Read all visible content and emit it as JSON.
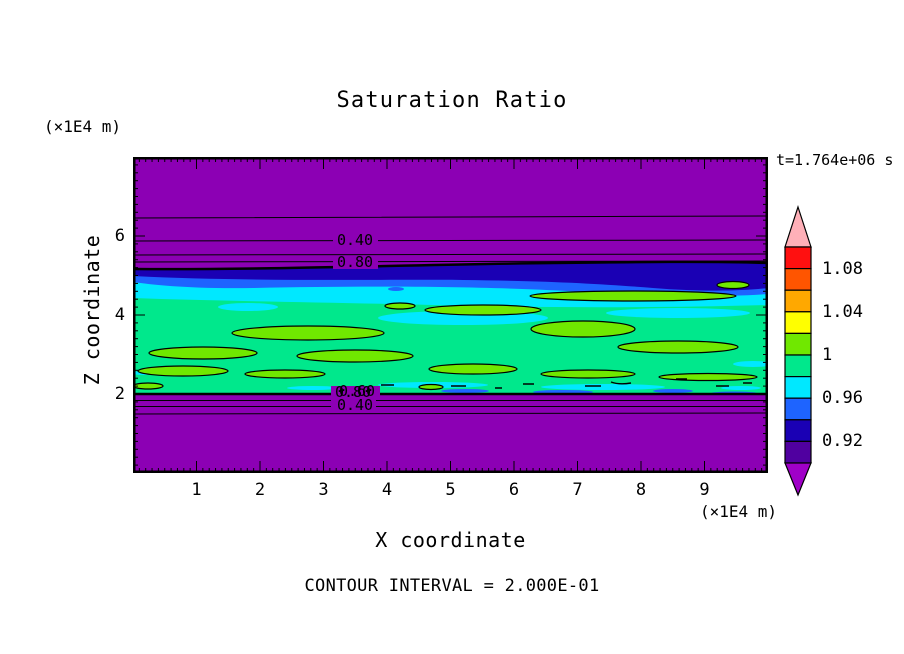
{
  "title": "Saturation Ratio",
  "timestamp": "t=1.764e+06 s",
  "footer": "CONTOUR INTERVAL = 2.000E-01",
  "axes": {
    "x": {
      "label": "X coordinate",
      "unit": "(×1E4 m)",
      "min": 0,
      "max": 10,
      "major_ticks": [
        "1",
        "2",
        "3",
        "4",
        "5",
        "6",
        "7",
        "8",
        "9"
      ],
      "minor_step": 0.1
    },
    "y": {
      "label": "Z coordinate",
      "unit": "(×1E4 m)",
      "min": 0,
      "max": 8,
      "major_ticks": [
        "2",
        "4",
        "6"
      ],
      "minor_step": 0.2
    }
  },
  "plot": {
    "contour_labels": {
      "top_040": "0.40",
      "top_080": "0.80",
      "bot_080": "0.80",
      "bot_060": "0.60",
      "bot_040": "0.40"
    }
  },
  "colorbar": {
    "labels": [
      "1.08",
      "1.04",
      "1",
      "0.96",
      "0.92"
    ],
    "segment_colors": [
      "#FF1010",
      "#FF5500",
      "#FFA800",
      "#FFFF00",
      "#70E800",
      "#00E88C",
      "#00E8FF",
      "#1E64FF",
      "#1A00B4",
      "#5000A0"
    ],
    "top_arrow_color": "#FFB0B8",
    "bottom_arrow_color": "#A000C8"
  },
  "colors": {
    "background": "#FFFFFF",
    "unsaturated_purple": "#8C00B4",
    "field_spring_green": "#00E88C",
    "lens_green": "#70E800",
    "cyan": "#00E8FF",
    "blue": "#1E64FF",
    "navy": "#1A00B4",
    "contour_line": "#000000"
  },
  "chart_data": {
    "type": "heatmap",
    "title": "Saturation Ratio",
    "xlabel": "X coordinate",
    "ylabel": "Z coordinate",
    "x_unit": "×1E4 m",
    "y_unit": "×1E4 m",
    "xlim": [
      0,
      10
    ],
    "ylim": [
      0,
      8
    ],
    "x_ticks": [
      1,
      2,
      3,
      4,
      5,
      6,
      7,
      8,
      9
    ],
    "y_ticks": [
      2,
      4,
      6
    ],
    "time_annotation": "t=1.764e+06 s",
    "contour_interval": 0.2,
    "colorbar_tick_values": [
      1.08,
      1.04,
      1,
      0.96,
      0.92
    ],
    "fill_level_edges": [
      0.9,
      0.92,
      0.94,
      0.96,
      0.98,
      1.0,
      1.02,
      1.04,
      1.06,
      1.08,
      1.1
    ],
    "fill_colors_low_to_high": [
      "#A000C8",
      "#5000A0",
      "#1A00B4",
      "#1E64FF",
      "#00E8FF",
      "#00E88C",
      "#70E800",
      "#FFFF00",
      "#FFA800",
      "#FF5500",
      "#FF1010",
      "#FFB0B8"
    ],
    "labeled_line_contours": [
      {
        "value": 0.4,
        "x": 3.6,
        "z": 5.9
      },
      {
        "value": 0.8,
        "x": 3.6,
        "z": 5.3
      },
      {
        "value": 0.8,
        "x": 3.5,
        "z": 2.05
      },
      {
        "value": 0.6,
        "x": 3.55,
        "z": 2.02
      },
      {
        "value": 0.4,
        "x": 3.5,
        "z": 1.7
      }
    ],
    "field_summary": [
      {
        "z_range": [
          5.4,
          8.0
        ],
        "saturation": "< 0.9 unsaturated purple zone; line contours 0.2, 0.4, 0.6, 0.8 stacked between z ≈ 6.2 and 5.3"
      },
      {
        "z_range": [
          5.0,
          5.4
        ],
        "saturation": "0.90–0.98 transition band (navy, blue, cyan), thicker toward the right side"
      },
      {
        "z_range": [
          2.0,
          5.0
        ],
        "saturation": "0.98–1.02 spring-green saturated field with elongated 1.00–1.02 yellow-green lenses and 0.96–0.98 cyan streaks"
      },
      {
        "z_range": [
          0.0,
          2.0
        ],
        "saturation": "< 0.9 unsaturated purple zone; line contours 0.8, 0.6, 0.4 just below z ≈ 2"
      }
    ]
  }
}
